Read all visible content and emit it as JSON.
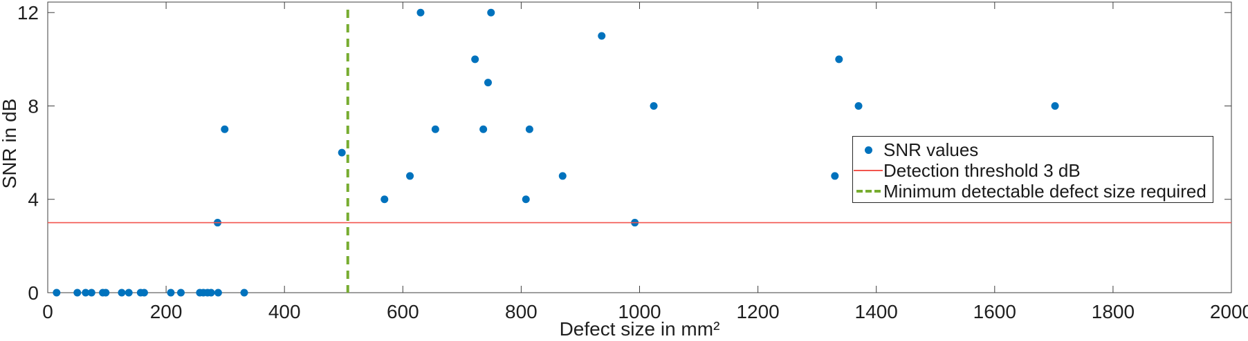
{
  "figure": {
    "background": "#ffffff",
    "axes_color": "#3d3d3d",
    "tick_label_color": "#1f1f1f",
    "tick_label_font_px": 28
  },
  "chart_data": {
    "type": "scatter",
    "title": "",
    "xlabel": "Defect size in mm²",
    "ylabel": "SNR in dB",
    "xlim": [
      0,
      2000
    ],
    "ylim": [
      0,
      12.45
    ],
    "xticks": [
      0,
      200,
      400,
      600,
      800,
      1000,
      1200,
      1400,
      1600,
      1800,
      2000
    ],
    "yticks": [
      0,
      4,
      8,
      12
    ],
    "grid": false,
    "legend_position": "middle-right",
    "series": [
      {
        "name": "SNR values",
        "type": "scatter",
        "marker": "dot",
        "color": "#0072bd",
        "marker_radius_px": 5.5,
        "points": [
          [
            15,
            0
          ],
          [
            50,
            0
          ],
          [
            64,
            0
          ],
          [
            74,
            0
          ],
          [
            93,
            0
          ],
          [
            98,
            0
          ],
          [
            125,
            0
          ],
          [
            137,
            0
          ],
          [
            157,
            0
          ],
          [
            163,
            0
          ],
          [
            208,
            0
          ],
          [
            225,
            0
          ],
          [
            257,
            0
          ],
          [
            263,
            0
          ],
          [
            270,
            0
          ],
          [
            276,
            0
          ],
          [
            288,
            0
          ],
          [
            332,
            0
          ],
          [
            287,
            3
          ],
          [
            299,
            7
          ],
          [
            497,
            6
          ],
          [
            569,
            4
          ],
          [
            612,
            5
          ],
          [
            630,
            12
          ],
          [
            655,
            7
          ],
          [
            722,
            10
          ],
          [
            736,
            7
          ],
          [
            744,
            9
          ],
          [
            749,
            12
          ],
          [
            808,
            4
          ],
          [
            814,
            7
          ],
          [
            870,
            5
          ],
          [
            936,
            11
          ],
          [
            992,
            3
          ],
          [
            1024,
            8
          ],
          [
            1330,
            5
          ],
          [
            1337,
            10
          ],
          [
            1370,
            8
          ],
          [
            1702,
            8
          ]
        ]
      },
      {
        "name": "Detection threshold 3 dB",
        "type": "hline",
        "y": 3,
        "color": "#f2544d",
        "line_width": 1.6
      },
      {
        "name": "Minimum detectable defect size required",
        "type": "vline",
        "x": 507,
        "color": "#77ac30",
        "dash": [
          12,
          9
        ],
        "line_width": 4
      }
    ]
  }
}
